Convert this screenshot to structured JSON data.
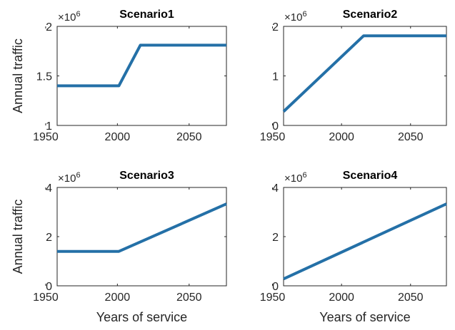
{
  "figure": {
    "colors": {
      "series": "#2470a7",
      "axis": "#262626"
    }
  },
  "chart_data": [
    {
      "type": "line",
      "title": "Scenario1",
      "xlabel": "",
      "ylabel": "Annual traffic",
      "xlim": [
        1958,
        2076
      ],
      "ylim": [
        1000000,
        2000000
      ],
      "xticks": [
        1950,
        2000,
        2050
      ],
      "xtick_labels": [
        "1950",
        "2000",
        "2050"
      ],
      "yticks": [
        1000000,
        1500000,
        2000000
      ],
      "ytick_labels": [
        "1",
        "1.5",
        "2"
      ],
      "multiplier": {
        "base": "×10",
        "exp": "6"
      },
      "grid": false,
      "series": [
        {
          "x": [
            1958,
            2001,
            2016,
            2076
          ],
          "y": [
            1400000,
            1400000,
            1810000,
            1810000
          ]
        }
      ]
    },
    {
      "type": "line",
      "title": "Scenario2",
      "xlabel": "",
      "ylabel": "",
      "xlim": [
        1958,
        2076
      ],
      "ylim": [
        0,
        2000000
      ],
      "xticks": [
        1950,
        2000,
        2050
      ],
      "xtick_labels": [
        "1950",
        "2000",
        "2050"
      ],
      "yticks": [
        0,
        1000000,
        2000000
      ],
      "ytick_labels": [
        "0",
        "1",
        "2"
      ],
      "multiplier": {
        "base": "×10",
        "exp": "6"
      },
      "grid": false,
      "series": [
        {
          "x": [
            1958,
            2016,
            2076
          ],
          "y": [
            280000,
            1810000,
            1810000
          ]
        }
      ]
    },
    {
      "type": "line",
      "title": "Scenario3",
      "xlabel": "Years of service",
      "ylabel": "Annual traffic",
      "xlim": [
        1958,
        2076
      ],
      "ylim": [
        0,
        4000000
      ],
      "xticks": [
        1950,
        2000,
        2050
      ],
      "xtick_labels": [
        "1950",
        "2000",
        "2050"
      ],
      "yticks": [
        0,
        2000000,
        4000000
      ],
      "ytick_labels": [
        "0",
        "2",
        "4"
      ],
      "multiplier": {
        "base": "×10",
        "exp": "6"
      },
      "grid": false,
      "series": [
        {
          "x": [
            1958,
            2001,
            2076
          ],
          "y": [
            1400000,
            1400000,
            3330000
          ]
        }
      ]
    },
    {
      "type": "line",
      "title": "Scenario4",
      "xlabel": "Years of service",
      "ylabel": "",
      "xlim": [
        1958,
        2076
      ],
      "ylim": [
        0,
        4000000
      ],
      "xticks": [
        1950,
        2000,
        2050
      ],
      "xtick_labels": [
        "1950",
        "2000",
        "2050"
      ],
      "yticks": [
        0,
        2000000,
        4000000
      ],
      "ytick_labels": [
        "0",
        "2",
        "4"
      ],
      "multiplier": {
        "base": "×10",
        "exp": "6"
      },
      "grid": false,
      "series": [
        {
          "x": [
            1958,
            2076
          ],
          "y": [
            280000,
            3330000
          ]
        }
      ]
    }
  ]
}
